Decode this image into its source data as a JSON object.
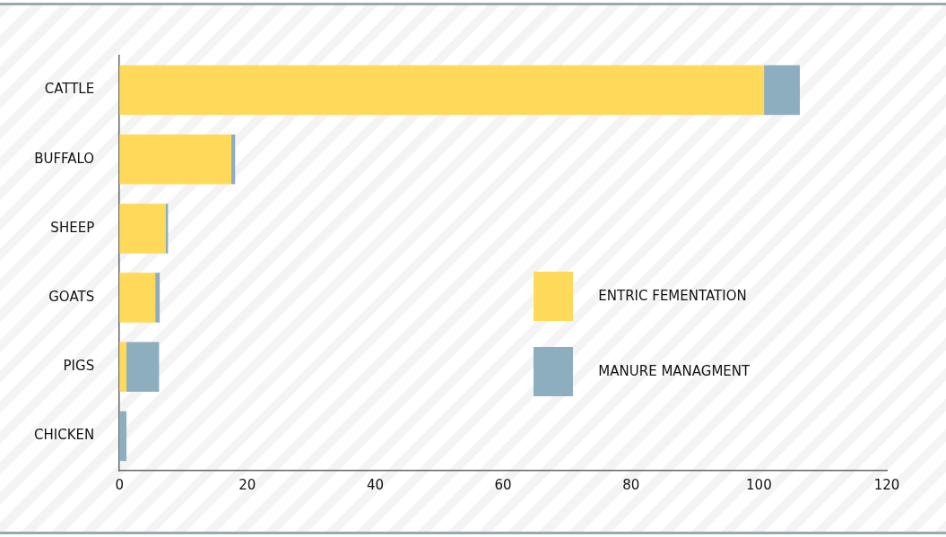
{
  "chart_data": {
    "type": "bar",
    "orientation": "horizontal",
    "stacked": true,
    "categories": [
      "CATTLE",
      "BUFFALO",
      "SHEEP",
      "GOATS",
      "PIGS",
      "CHICKEN"
    ],
    "series": [
      {
        "name": "ENTRIC FEMENTATION",
        "color": "#ffd95a",
        "values": [
          100.8,
          17.5,
          7.2,
          5.6,
          1.1,
          0
        ]
      },
      {
        "name": "MANURE MANAGMENT",
        "color": "#8daebe",
        "values": [
          5.6,
          0.6,
          0.4,
          0.7,
          5.1,
          1.1
        ]
      }
    ],
    "xlim": [
      0,
      120
    ],
    "xticks": [
      0,
      20,
      40,
      60,
      80,
      100,
      120
    ],
    "grid": false,
    "legend": "right"
  }
}
